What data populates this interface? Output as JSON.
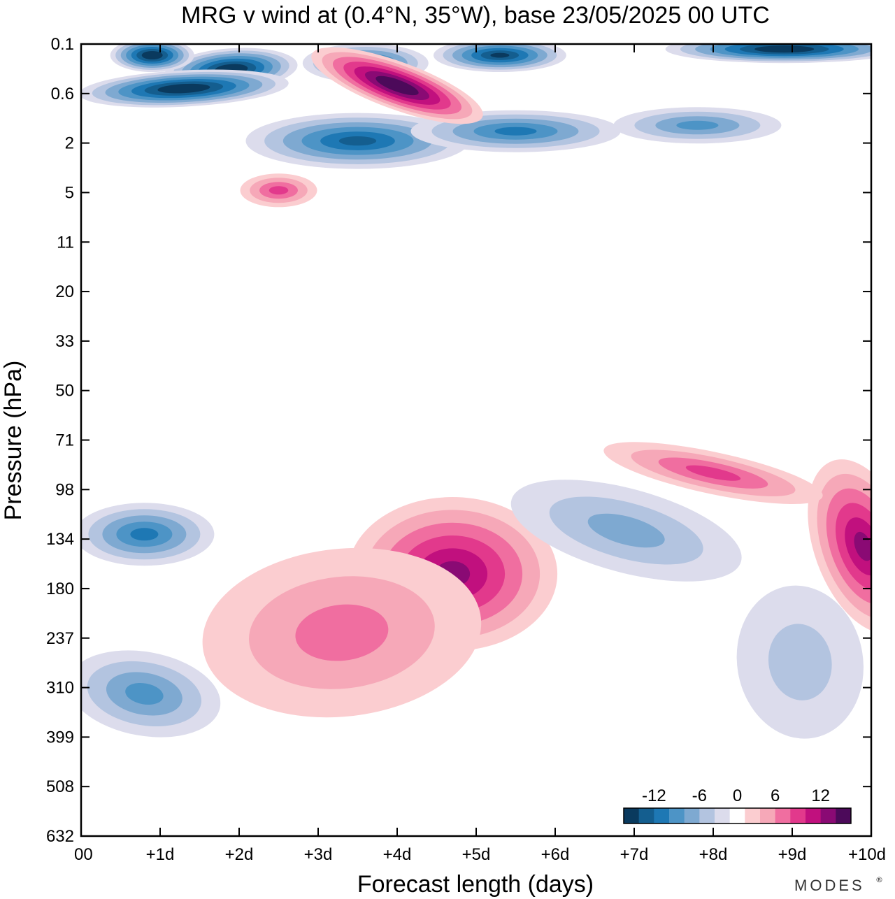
{
  "chart_data": {
    "type": "heatmap",
    "title": "MRG v wind at (0.4°N, 35°W),  base 23/05/2025  00 UTC",
    "xlabel": "Forecast length (days)",
    "ylabel": "Pressure (hPa)",
    "x_ticks": [
      "00",
      "+1d",
      "+2d",
      "+3d",
      "+4d",
      "+5d",
      "+6d",
      "+7d",
      "+8d",
      "+9d",
      "+10d"
    ],
    "y_ticks": [
      "0.1",
      "0.6",
      "2",
      "5",
      "11",
      "20",
      "33",
      "50",
      "71",
      "98",
      "134",
      "180",
      "237",
      "310",
      "399",
      "508",
      "632"
    ],
    "xlim": [
      0,
      10
    ],
    "y_scale": "log",
    "colorbar": {
      "labels": [
        "-12",
        "-6",
        "0",
        "6",
        "12"
      ],
      "label_values": [
        -12,
        -6,
        0,
        6,
        12
      ],
      "levels": [
        -16,
        -14,
        -12,
        -10,
        -8,
        -6,
        -4,
        -2,
        2,
        4,
        6,
        8,
        10,
        12,
        14,
        16
      ],
      "colors": [
        "#0a3a5e",
        "#145e8f",
        "#1e78b4",
        "#4d94c6",
        "#7ea9d1",
        "#b3c4e0",
        "#dcdcec",
        "#ffffff",
        "#fbcdd0",
        "#f6a8b8",
        "#f06ea0",
        "#e2398c",
        "#c1107e",
        "#8a0a74",
        "#4c0a5a"
      ]
    },
    "features": [
      {
        "kind": "negative",
        "x": 1.9,
        "p": 0.25,
        "peak": -16
      },
      {
        "kind": "negative",
        "x": 0.9,
        "p": 0.15,
        "peak": -16
      },
      {
        "kind": "negative",
        "x": 1.3,
        "p": 0.5,
        "peak": -16
      },
      {
        "kind": "negative",
        "x": 3.6,
        "p": 0.2,
        "peak": -12
      },
      {
        "kind": "negative",
        "x": 5.3,
        "p": 0.15,
        "peak": -14
      },
      {
        "kind": "negative",
        "x": 8.9,
        "p": 0.12,
        "peak": -16
      },
      {
        "kind": "negative",
        "x": 3.5,
        "p": 1.9,
        "peak": -12
      },
      {
        "kind": "negative",
        "x": 5.5,
        "p": 1.5,
        "peak": -10
      },
      {
        "kind": "negative",
        "x": 7.8,
        "p": 1.3,
        "peak": -8
      },
      {
        "kind": "positive",
        "x": 4.0,
        "p": 0.45,
        "peak": 16
      },
      {
        "kind": "positive",
        "x": 2.5,
        "p": 4.8,
        "peak": 8
      },
      {
        "kind": "positive",
        "x": 4.7,
        "p": 165,
        "peak": 12
      },
      {
        "kind": "positive",
        "x": 3.3,
        "p": 230,
        "peak": 6
      },
      {
        "kind": "positive",
        "x": 9.9,
        "p": 140,
        "peak": 12
      },
      {
        "kind": "positive",
        "x": 8.0,
        "p": 88,
        "peak": 8
      },
      {
        "kind": "negative",
        "x": 0.8,
        "p": 130,
        "peak": -10
      },
      {
        "kind": "negative",
        "x": 0.8,
        "p": 320,
        "peak": -8
      },
      {
        "kind": "negative",
        "x": 6.9,
        "p": 127,
        "peak": -6
      },
      {
        "kind": "negative",
        "x": 9.1,
        "p": 270,
        "peak": -4
      }
    ]
  },
  "brand": {
    "name": "MODES",
    "mark": "®"
  }
}
